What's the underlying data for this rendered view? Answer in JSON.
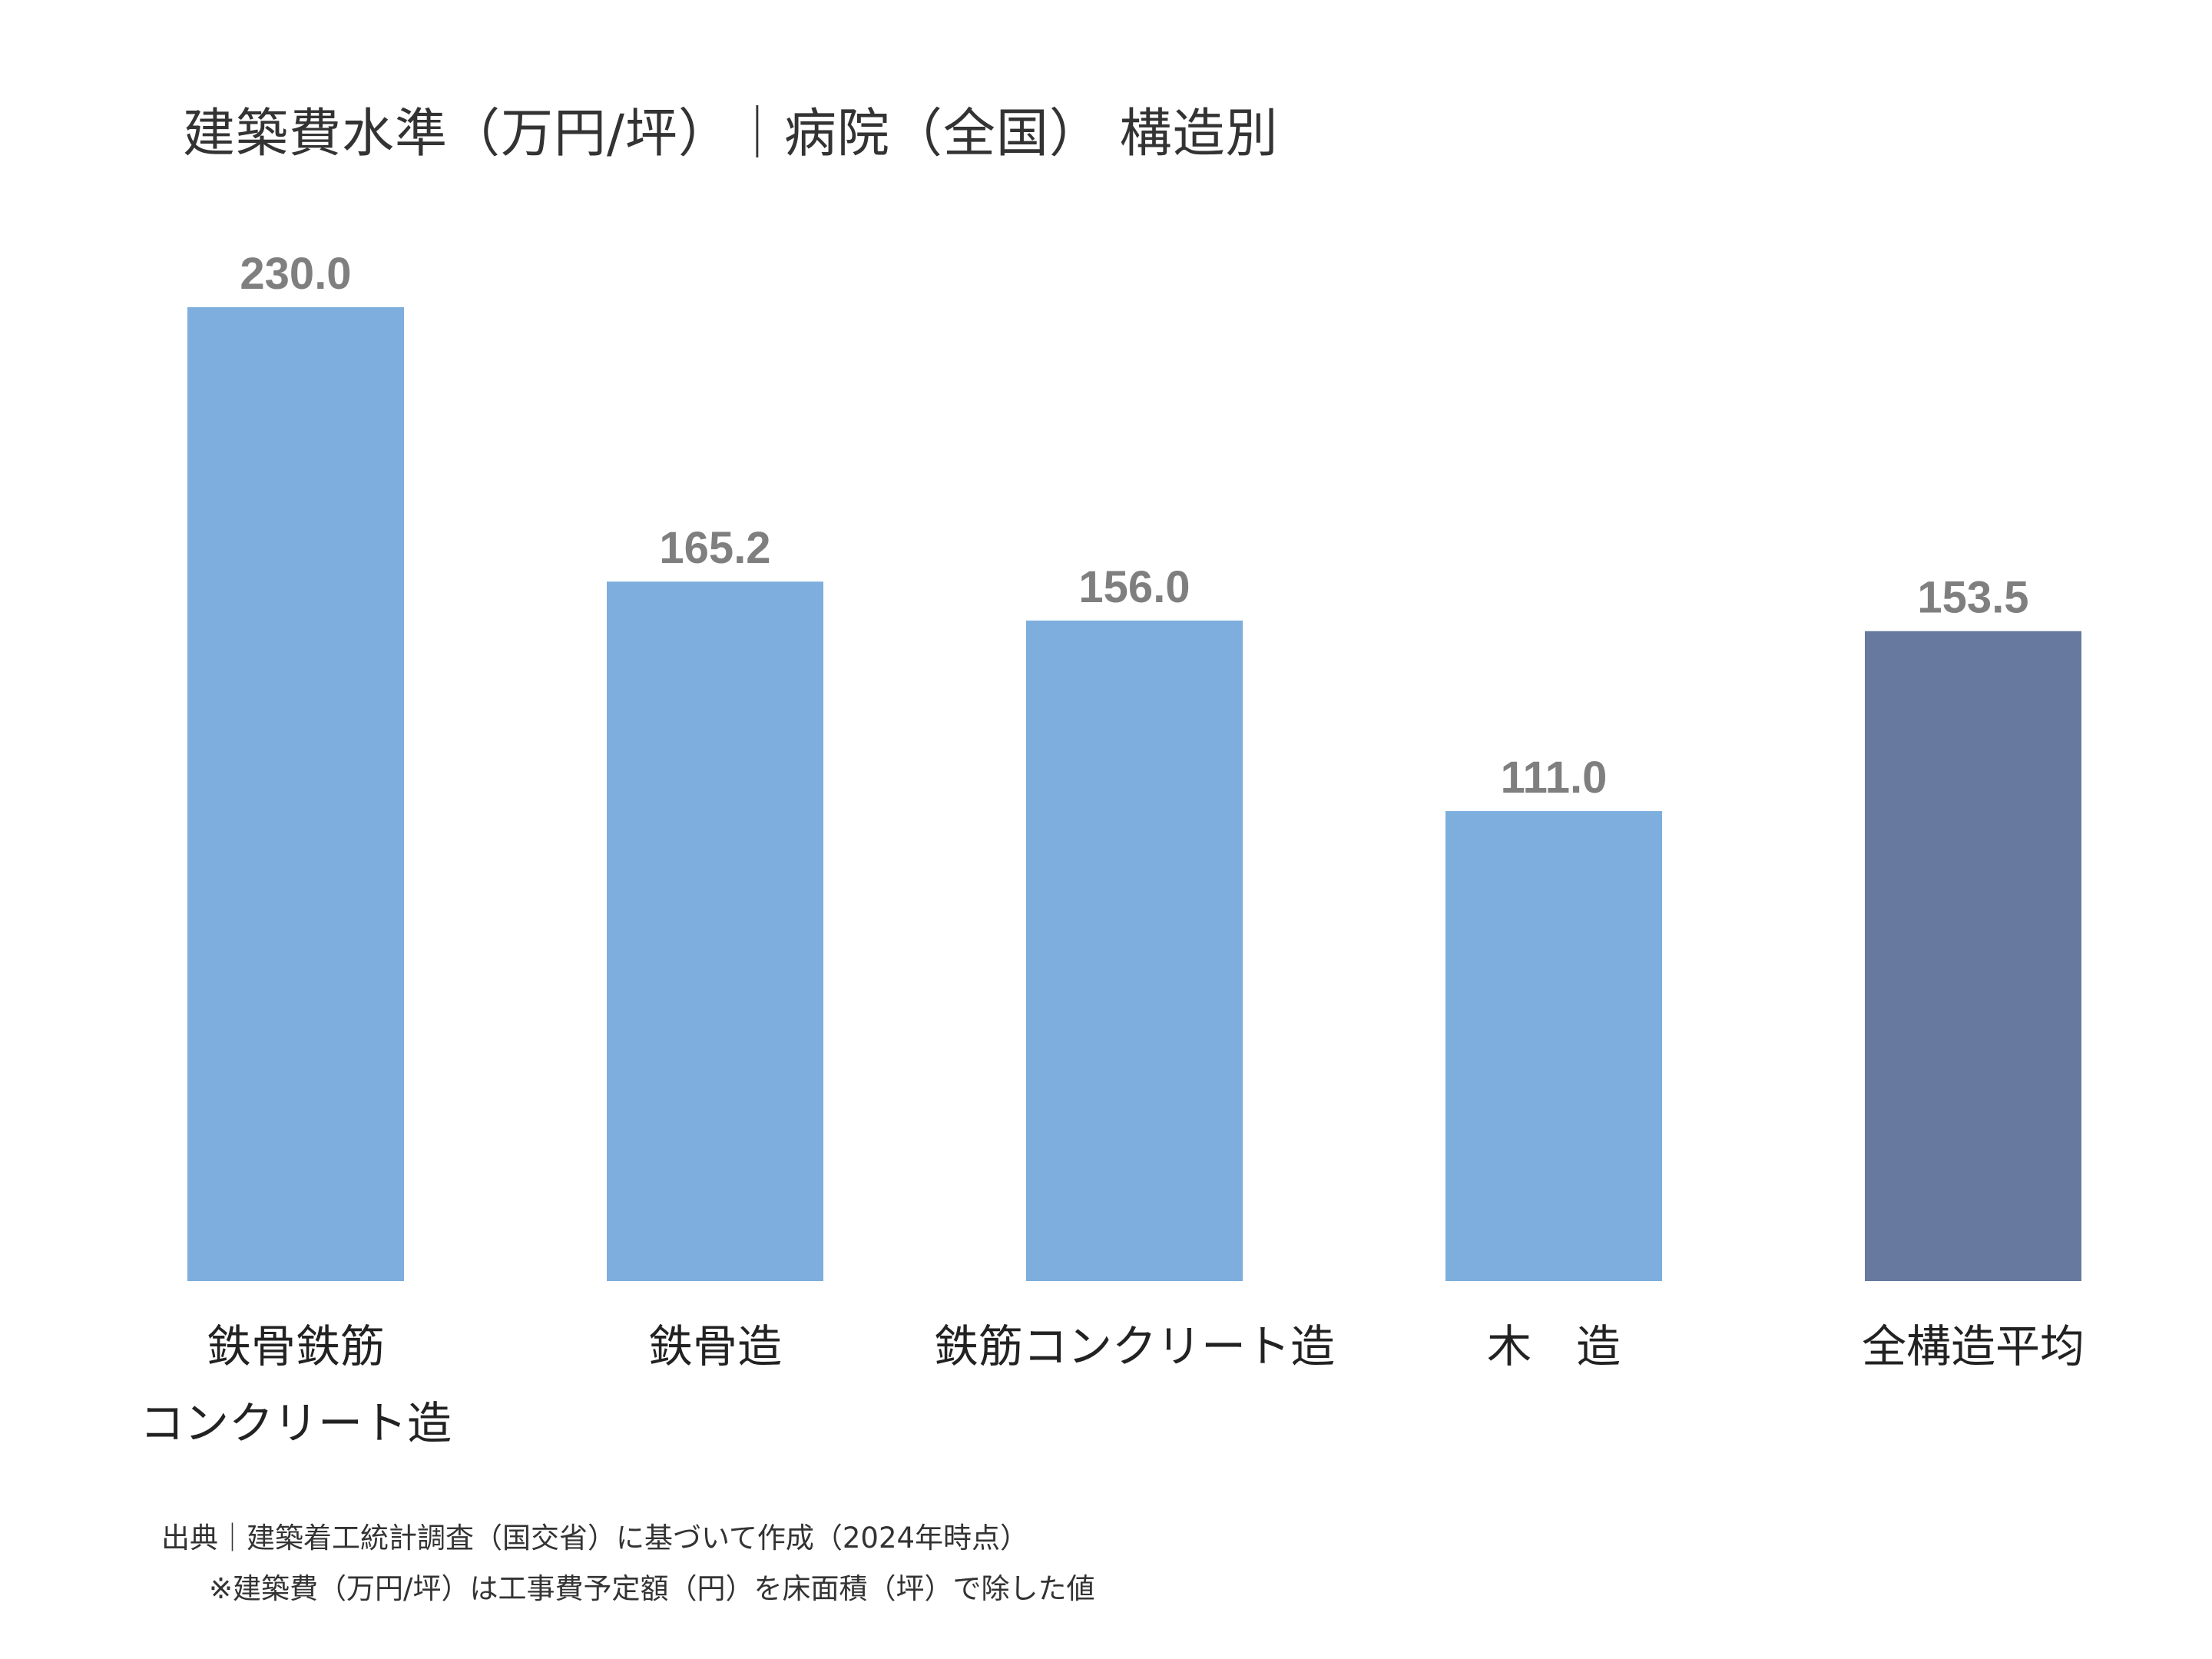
{
  "chart_data": {
    "type": "bar",
    "title": "建築費水準（万円/坪）｜病院（全国） 構造別",
    "categories": [
      [
        "鉄骨鉄筋",
        "コンクリート造"
      ],
      [
        "鉄骨造"
      ],
      [
        "鉄筋コンクリート造"
      ],
      [
        "木　造"
      ],
      [
        "全構造平均"
      ]
    ],
    "values": [
      230.0,
      165.2,
      156.0,
      111.0,
      153.5
    ],
    "value_labels": [
      "230.0",
      "165.2",
      "156.0",
      "111.0",
      "153.5"
    ],
    "bar_colors": [
      "#7daedd",
      "#7daedd",
      "#7daedd",
      "#7daedd",
      "#67799f"
    ],
    "ylim": [
      0,
      230
    ],
    "xlabel": "",
    "ylabel": "",
    "grid": false,
    "legend": "none"
  },
  "footer": {
    "source": "出典｜建築着工統計調査（国交省）に基づいて作成（2024年時点）",
    "note": "※建築費（万円/坪）は工事費予定額（円）を床面積（坪）で除した値"
  }
}
